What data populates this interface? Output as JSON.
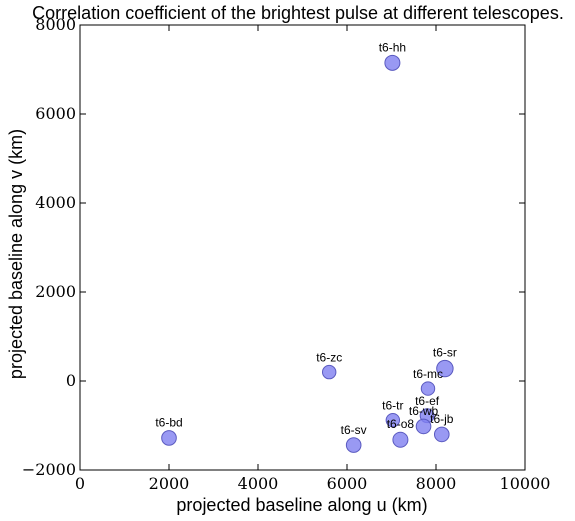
{
  "chart_data": {
    "type": "scatter",
    "title": "Correlation coefficient of the brightest pulse at different telescopes.",
    "xlabel": "projected baseline along u (km)",
    "ylabel": "projected baseline along v (km)",
    "xlim": [
      0,
      10000
    ],
    "ylim": [
      -2000,
      8000
    ],
    "xticks": [
      0,
      2000,
      4000,
      6000,
      8000,
      10000
    ],
    "yticks": [
      -2000,
      0,
      2000,
      4000,
      6000,
      8000
    ],
    "xtick_labels": [
      "0",
      "2000",
      "4000",
      "6000",
      "8000",
      "10000"
    ],
    "ytick_labels": [
      "−2000",
      "0",
      "2000",
      "4000",
      "6000",
      "8000"
    ],
    "grid": false,
    "marker_color": "#8080f0",
    "marker_edge_color": "#5a5ac0",
    "marker_size_meaning": "correlation coefficient (relative)",
    "points": [
      {
        "label": "t6-hh",
        "x": 7020,
        "y": 7150,
        "size": 1.0
      },
      {
        "label": "t6-zc",
        "x": 5600,
        "y": 200,
        "size": 0.8
      },
      {
        "label": "t6-sr",
        "x": 8200,
        "y": 280,
        "size": 1.2
      },
      {
        "label": "t6-mc",
        "x": 7820,
        "y": -170,
        "size": 0.8
      },
      {
        "label": "t6-ef",
        "x": 7800,
        "y": -780,
        "size": 0.85
      },
      {
        "label": "t6-tr",
        "x": 7030,
        "y": -880,
        "size": 0.8
      },
      {
        "label": "t6-wb",
        "x": 7720,
        "y": -1020,
        "size": 0.95
      },
      {
        "label": "t6-jb",
        "x": 8130,
        "y": -1200,
        "size": 0.95
      },
      {
        "label": "t6-o8",
        "x": 7200,
        "y": -1320,
        "size": 1.0
      },
      {
        "label": "t6-sv",
        "x": 6150,
        "y": -1440,
        "size": 0.95
      },
      {
        "label": "t6-bd",
        "x": 2000,
        "y": -1280,
        "size": 0.95
      }
    ]
  }
}
